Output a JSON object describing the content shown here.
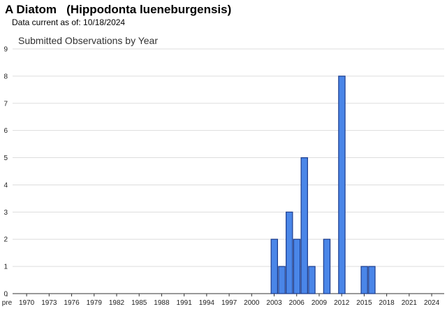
{
  "header": {
    "title": "A Diatom   (Hippodonta lueneburgensis)",
    "subtitle": "Data current as of: 10/18/2024"
  },
  "chart_data": {
    "type": "bar",
    "title": "Submitted Observations by Year",
    "xlabel": "",
    "ylabel": "",
    "ylim": [
      0,
      9
    ],
    "yticks": [
      0,
      1,
      2,
      3,
      4,
      5,
      6,
      7,
      8,
      9
    ],
    "grid": true,
    "legend": "none",
    "bar_color": "#4a86e8",
    "bar_edge_color": "#1b3b8c",
    "x_tick_labels": [
      "pre",
      "1970",
      "1973",
      "1976",
      "1979",
      "1982",
      "1985",
      "1988",
      "1991",
      "1994",
      "1997",
      "2000",
      "2003",
      "2006",
      "2009",
      "2012",
      "2015",
      "2018",
      "2021",
      "2024"
    ],
    "categories": [
      "pre",
      "1970",
      "1971",
      "1972",
      "1973",
      "1974",
      "1975",
      "1976",
      "1977",
      "1978",
      "1979",
      "1980",
      "1981",
      "1982",
      "1983",
      "1984",
      "1985",
      "1986",
      "1987",
      "1988",
      "1989",
      "1990",
      "1991",
      "1992",
      "1993",
      "1994",
      "1995",
      "1996",
      "1997",
      "1998",
      "1999",
      "2000",
      "2001",
      "2002",
      "2003",
      "2004",
      "2005",
      "2006",
      "2007",
      "2008",
      "2009",
      "2010",
      "2011",
      "2012",
      "2013",
      "2014",
      "2015",
      "2016",
      "2017",
      "2018",
      "2019",
      "2020",
      "2021",
      "2022",
      "2023",
      "2024"
    ],
    "values": [
      0,
      0,
      0,
      0,
      0,
      0,
      0,
      0,
      0,
      0,
      0,
      0,
      0,
      0,
      0,
      0,
      0,
      0,
      0,
      0,
      0,
      0,
      0,
      0,
      0,
      0,
      0,
      0,
      0,
      0,
      0,
      0,
      0,
      0,
      2,
      1,
      3,
      2,
      5,
      1,
      0,
      2,
      0,
      8,
      0,
      0,
      1,
      1,
      0,
      0,
      0,
      0,
      0,
      0,
      0,
      0
    ]
  }
}
